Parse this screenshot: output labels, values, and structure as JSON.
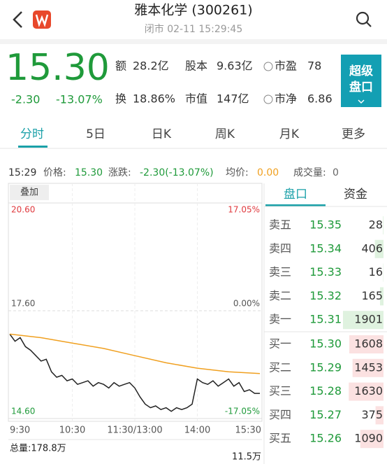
{
  "header": {
    "title": "雅本化学 (300261)",
    "subtitle": "闭市 02-11 15:29:45"
  },
  "quote": {
    "price": "15.30",
    "change": "-2.30",
    "change_pct": "-13.07%",
    "stats": [
      {
        "label": "额",
        "value": "28.2亿"
      },
      {
        "label": "股本",
        "value": "9.63亿"
      },
      {
        "label": "市盈",
        "value": "78"
      },
      {
        "label": "换",
        "value": "18.86%"
      },
      {
        "label": "市值",
        "value": "147亿"
      },
      {
        "label": "市净",
        "value": "6.86"
      }
    ],
    "button": [
      "超级",
      "盘口"
    ]
  },
  "tabs": [
    "分时",
    "5日",
    "日K",
    "周K",
    "月K",
    "更多"
  ],
  "info": {
    "time": "15:29",
    "items": [
      {
        "label": "价格:",
        "value": "15.30"
      },
      {
        "label": "涨跌:",
        "value": "-2.30(-13.07%)"
      },
      {
        "label": "均价:",
        "value": "0.00"
      },
      {
        "label": "成交量:",
        "value": "0"
      }
    ]
  },
  "chart_data": {
    "type": "line",
    "overlay_button": "叠加",
    "xlim": [
      0,
      240
    ],
    "xticks": [
      {
        "value": 0,
        "label": "9:30"
      },
      {
        "value": 60,
        "label": "10:30"
      },
      {
        "value": 120,
        "label": "11:30/13:00"
      },
      {
        "value": 180,
        "label": "14:00"
      },
      {
        "value": 240,
        "label": "15:30"
      }
    ],
    "ylim": [
      14.6,
      20.6
    ],
    "yticks": [
      {
        "value": 20.6,
        "label": "20.60"
      },
      {
        "value": 17.6,
        "label": "17.60"
      },
      {
        "value": 14.6,
        "label": "14.60"
      }
    ],
    "y2lim": [
      -17.05,
      17.05
    ],
    "y2ticks": [
      {
        "value": 17.05,
        "label": "17.05%"
      },
      {
        "value": 0,
        "label": "0.00%"
      },
      {
        "value": -17.05,
        "label": "-17.05%"
      }
    ],
    "series": [
      {
        "color": "#222222",
        "x": [
          0,
          5,
          10,
          15,
          20,
          25,
          30,
          35,
          40,
          45,
          50,
          55,
          60,
          65,
          70,
          75,
          80,
          85,
          90,
          95,
          100,
          105,
          110,
          115,
          120,
          125,
          130,
          135,
          140,
          145,
          150,
          155,
          160,
          165,
          170,
          175,
          180,
          185,
          190,
          195,
          200,
          205,
          210,
          215,
          220,
          225,
          230,
          235,
          240
        ],
        "values": [
          16.95,
          16.75,
          16.85,
          16.6,
          16.5,
          16.35,
          16.2,
          16.25,
          15.9,
          15.75,
          15.8,
          15.65,
          15.7,
          15.55,
          15.6,
          15.65,
          15.5,
          15.6,
          15.55,
          15.45,
          15.6,
          15.5,
          15.55,
          15.6,
          15.45,
          15.2,
          15.0,
          14.9,
          14.95,
          14.85,
          14.9,
          14.8,
          14.9,
          14.85,
          14.9,
          15.0,
          15.7,
          15.6,
          15.55,
          15.65,
          15.5,
          15.6,
          15.7,
          15.5,
          15.6,
          15.35,
          15.4,
          15.3,
          15.3
        ]
      },
      {
        "color": "#f0a020",
        "x": [
          0,
          30,
          60,
          90,
          120,
          150,
          180,
          210,
          240
        ],
        "values": [
          16.95,
          16.85,
          16.7,
          16.55,
          16.35,
          16.15,
          16.0,
          15.9,
          15.85
        ]
      }
    ],
    "total_volume": "总量:178.8万",
    "max_volume": "11.5万"
  },
  "order_book": {
    "tabs": [
      "盘口",
      "资金"
    ],
    "rows": [
      {
        "side": "卖五",
        "price": "15.35",
        "volume": 28
      },
      {
        "side": "卖四",
        "price": "15.34",
        "volume": 406
      },
      {
        "side": "卖三",
        "price": "15.33",
        "volume": 16
      },
      {
        "side": "卖二",
        "price": "15.32",
        "volume": 165
      },
      {
        "side": "卖一",
        "price": "15.31",
        "volume": 1901
      },
      {
        "side": "买一",
        "price": "15.30",
        "volume": 1608
      },
      {
        "side": "买二",
        "price": "15.29",
        "volume": 1453
      },
      {
        "side": "买三",
        "price": "15.28",
        "volume": 1630
      },
      {
        "side": "买四",
        "price": "15.27",
        "volume": 375
      },
      {
        "side": "买五",
        "price": "15.26",
        "volume": 1090
      }
    ]
  }
}
